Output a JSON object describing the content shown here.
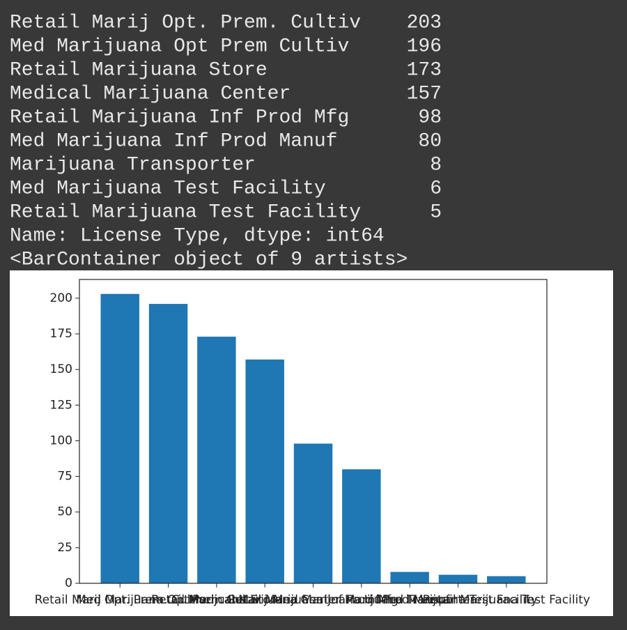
{
  "output": {
    "rows": [
      [
        "Retail Marij Opt. Prem. Cultiv",
        203
      ],
      [
        "Med Marijuana Opt Prem Cultiv",
        196
      ],
      [
        "Retail Marijuana Store",
        173
      ],
      [
        "Medical Marijuana Center",
        157
      ],
      [
        "Retail Marijuana Inf Prod Mfg",
        98
      ],
      [
        "Med Marijuana Inf Prod Manuf",
        80
      ],
      [
        "Marijuana Transporter",
        8
      ],
      [
        "Med Marijuana Test Facility",
        6
      ],
      [
        "Retail Marijuana Test Facility",
        5
      ]
    ],
    "footer": "Name: License Type, dtype: int64",
    "repr": "<BarContainer object of 9 artists>"
  },
  "chart_data": {
    "type": "bar",
    "categories": [
      "Retail Marij Opt. Prem. Cultiv",
      "Med Marijuana Opt Prem Cultiv",
      "Retail Marijuana Store",
      "Medical Marijuana Center",
      "Retail Marijuana Inf Prod Mfg",
      "Med Marijuana Inf Prod Manuf",
      "Marijuana Transporter",
      "Med Marijuana Test Facility",
      "Retail Marijuana Test Facility"
    ],
    "values": [
      203,
      196,
      173,
      157,
      98,
      80,
      8,
      6,
      5
    ],
    "color": "#1f77b4",
    "ylim": [
      0,
      213.15
    ],
    "yticks": [
      0,
      25,
      50,
      75,
      100,
      125,
      150,
      175,
      200
    ]
  }
}
